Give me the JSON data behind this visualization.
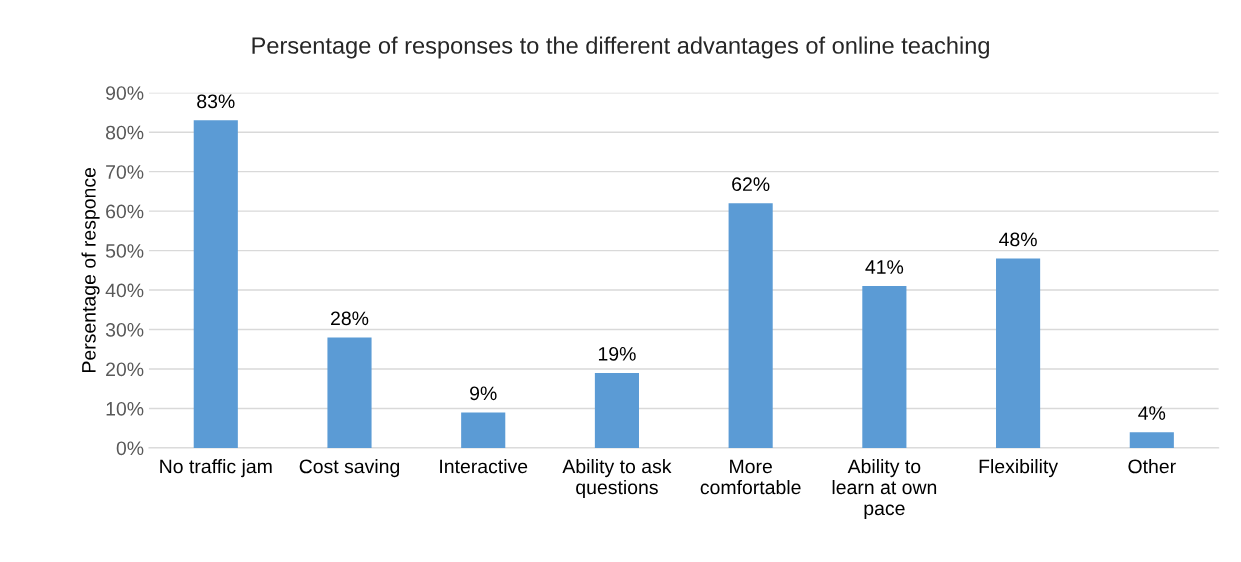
{
  "chart_data": {
    "type": "bar",
    "title": "Persentage of responses to the different advantages of online teaching",
    "ylabel": "Persentage of responce",
    "categories": [
      "No traffic jam",
      "Cost saving",
      "Interactive",
      "Ability to ask questions",
      "More comfortable",
      "Ability to learn at own pace",
      "Flexibility",
      "Other"
    ],
    "values": [
      83,
      28,
      9,
      19,
      62,
      41,
      48,
      4
    ],
    "value_labels": [
      "83%",
      "28%",
      "9%",
      "19%",
      "62%",
      "41%",
      "48%",
      "4%"
    ],
    "color": "#5b9bd5",
    "ylim": [
      0,
      90
    ],
    "yticks": [
      {
        "value": 0,
        "label": "0%"
      },
      {
        "value": 10,
        "label": "10%"
      },
      {
        "value": 20,
        "label": "20%"
      },
      {
        "value": 30,
        "label": "30%"
      },
      {
        "value": 40,
        "label": "40%"
      },
      {
        "value": 50,
        "label": "50%"
      },
      {
        "value": 60,
        "label": "60%"
      },
      {
        "value": 70,
        "label": "70%"
      },
      {
        "value": 80,
        "label": "80%"
      },
      {
        "value": 90,
        "label": "90%"
      }
    ],
    "grid": "y"
  }
}
